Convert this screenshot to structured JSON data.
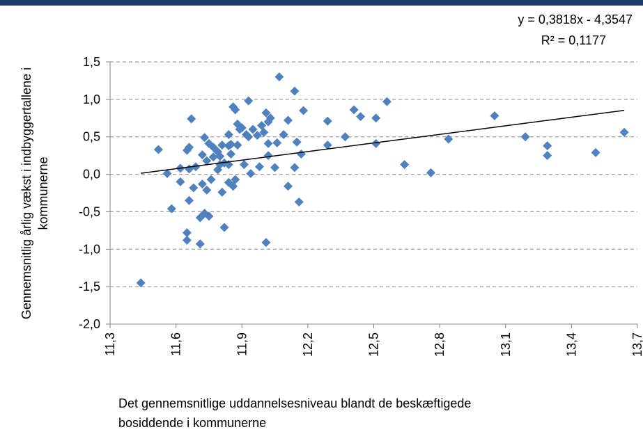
{
  "chart_data": {
    "type": "scatter",
    "y_label": [
      "Gennemsnitlig årlig vækst i indbyggertallene i",
      "kommunerne"
    ],
    "x_label": [
      "Det gennemsnitlige uddannelsesniveau  blandt de beskæftigede",
      "bosiddende i kommunerne"
    ],
    "annotations": [
      "y = 0,3818x - 4,3547",
      "R² = 0,1177"
    ],
    "color": "#4f81bd",
    "x": [
      11.44,
      11.52,
      11.56,
      11.58,
      11.62,
      11.62,
      11.65,
      11.66,
      11.65,
      11.65,
      11.66,
      11.66,
      11.67,
      11.68,
      11.69,
      11.71,
      11.71,
      11.72,
      11.72,
      11.73,
      11.73,
      11.74,
      11.74,
      11.75,
      11.75,
      11.76,
      11.77,
      11.77,
      11.79,
      11.79,
      11.8,
      11.8,
      11.81,
      11.81,
      11.82,
      11.82,
      11.84,
      11.84,
      11.84,
      11.84,
      11.85,
      11.85,
      11.86,
      11.86,
      11.87,
      11.87,
      11.88,
      11.88,
      11.89,
      11.9,
      11.91,
      11.92,
      11.93,
      11.93,
      11.94,
      11.95,
      11.97,
      11.98,
      11.99,
      12.0,
      12.01,
      12.01,
      12.02,
      12.02,
      12.02,
      12.03,
      12.05,
      12.06,
      12.07,
      12.09,
      12.11,
      12.11,
      12.14,
      12.14,
      12.15,
      12.16,
      12.17,
      12.18,
      12.29,
      12.29,
      12.37,
      12.41,
      12.44,
      12.51,
      12.51,
      12.56,
      12.64,
      12.76,
      12.84,
      13.05,
      13.19,
      13.29,
      13.29,
      13.51,
      13.64
    ],
    "values": [
      -1.45,
      0.33,
      0.01,
      -0.46,
      0.08,
      -0.1,
      0.32,
      0.36,
      -0.78,
      -0.88,
      -0.35,
      0.07,
      0.74,
      -0.18,
      0.1,
      -0.93,
      -0.58,
      -0.13,
      0.26,
      0.49,
      -0.52,
      -0.21,
      0.18,
      -0.56,
      0.41,
      -0.07,
      0.36,
      0.23,
      0.3,
      0.06,
      0.24,
      0.13,
      0.39,
      -0.24,
      -0.71,
      0.15,
      0.53,
      0.38,
      -0.11,
      0.13,
      0.4,
      0.27,
      0.9,
      -0.16,
      -0.07,
      0.86,
      0.67,
      0.39,
      0.6,
      0.62,
      0.13,
      0.53,
      0.98,
      0.5,
      0.01,
      0.6,
      0.52,
      0.1,
      0.65,
      0.56,
      -0.91,
      0.82,
      0.7,
      0.25,
      0.41,
      0.75,
      0.09,
      0.42,
      1.3,
      0.53,
      0.72,
      -0.16,
      1.11,
      0.09,
      0.43,
      -0.37,
      0.27,
      0.85,
      0.71,
      0.39,
      0.5,
      0.86,
      0.77,
      0.75,
      0.41,
      0.97,
      0.13,
      0.02,
      0.47,
      0.78,
      0.5,
      0.38,
      0.25,
      0.29,
      0.56
    ],
    "trendline": {
      "x": [
        11.44,
        13.64
      ],
      "values": [
        0.0131,
        0.8531
      ],
      "color": "#000000"
    },
    "xlim": [
      11.3,
      13.7
    ],
    "xticks": [
      {
        "value": 11.3,
        "label": "11,3"
      },
      {
        "value": 11.6,
        "label": "11,6"
      },
      {
        "value": 11.9,
        "label": "11,9"
      },
      {
        "value": 12.2,
        "label": "12,2"
      },
      {
        "value": 12.5,
        "label": "12,5"
      },
      {
        "value": 12.8,
        "label": "12,8"
      },
      {
        "value": 13.1,
        "label": "13,1"
      },
      {
        "value": 13.4,
        "label": "13,4"
      },
      {
        "value": 13.7,
        "label": "13,7"
      }
    ],
    "ylim": [
      -2,
      1.5
    ],
    "yticks": [
      {
        "value": -2,
        "label": "-2,0"
      },
      {
        "value": -1.5,
        "label": "-1,5"
      },
      {
        "value": -1,
        "label": "-1,0"
      },
      {
        "value": -0.5,
        "label": "-0,5"
      },
      {
        "value": 0,
        "label": "0,0"
      },
      {
        "value": 0.5,
        "label": "0,5"
      },
      {
        "value": 1,
        "label": "1,0"
      },
      {
        "value": 1.5,
        "label": "1,5"
      }
    ],
    "grid": true
  }
}
